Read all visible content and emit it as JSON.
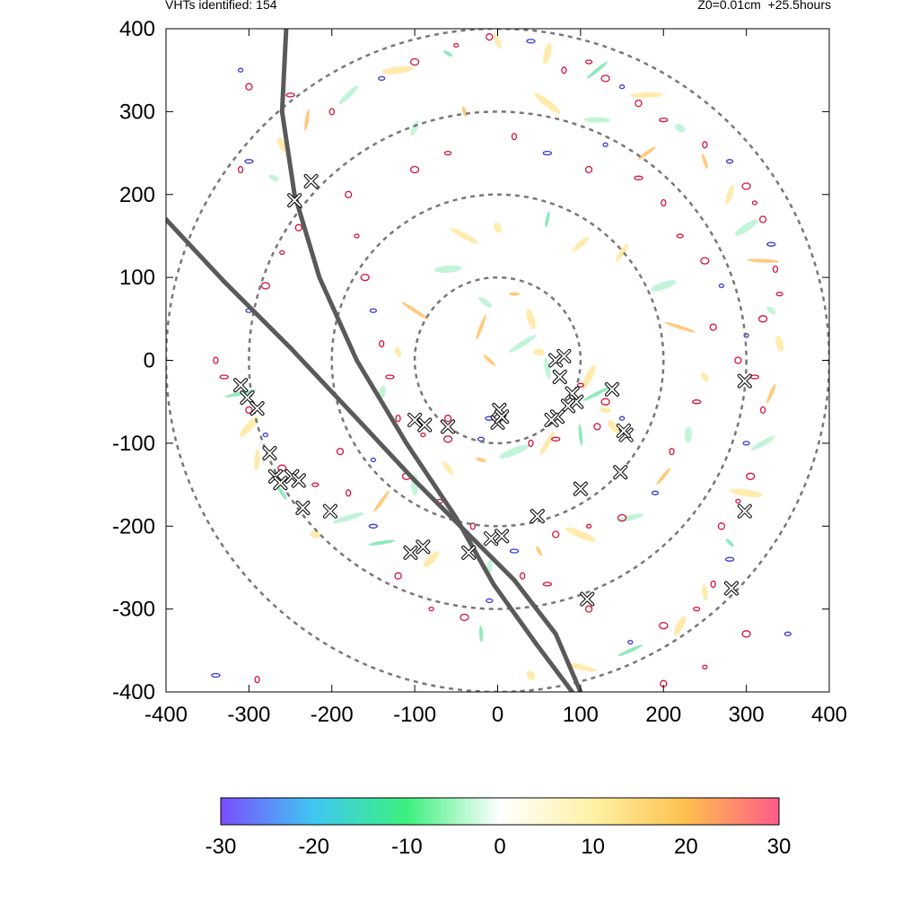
{
  "header": {
    "left_text": "VHTs identified: 154",
    "right_text": "Z0=0.01cm  +25.5hours"
  },
  "chart_data": {
    "type": "scatter",
    "xlim": [
      -400,
      400
    ],
    "ylim": [
      -400,
      400
    ],
    "x_ticks": [
      "-400",
      "-300",
      "-200",
      "-100",
      "0",
      "100",
      "200",
      "300",
      "400"
    ],
    "y_ticks": [
      "400",
      "300",
      "200",
      "100",
      "0",
      "-100",
      "-200",
      "-300",
      "-400"
    ],
    "range_rings": [
      100,
      200,
      300,
      400
    ],
    "colorbar": {
      "range": [
        -30,
        30
      ],
      "ticks": [
        "-30",
        "-20",
        "-10",
        "0",
        "10",
        "20",
        "30"
      ],
      "colors": [
        "#7b4dff",
        "#3fc7f2",
        "#3cf07e",
        "#ffffff",
        "#fff2a6",
        "#ffc04d",
        "#ff5b88"
      ]
    },
    "tracks": [
      {
        "points": [
          [
            -400,
            170
          ],
          [
            -330,
            95
          ],
          [
            -250,
            15
          ],
          [
            -170,
            -70
          ],
          [
            -100,
            -145
          ],
          [
            -30,
            -215
          ],
          [
            20,
            -265
          ],
          [
            70,
            -330
          ],
          [
            100,
            -400
          ]
        ]
      },
      {
        "points": [
          [
            -255,
            400
          ],
          [
            -260,
            300
          ],
          [
            -245,
            200
          ],
          [
            -215,
            100
          ],
          [
            -170,
            0
          ],
          [
            -110,
            -100
          ],
          [
            -50,
            -190
          ],
          [
            -5,
            -270
          ],
          [
            45,
            -340
          ],
          [
            90,
            -400
          ]
        ]
      }
    ],
    "vht_markers": [
      [
        -310,
        -30
      ],
      [
        -302,
        -45
      ],
      [
        -290,
        -58
      ],
      [
        -275,
        -112
      ],
      [
        -268,
        -140
      ],
      [
        -262,
        -148
      ],
      [
        -248,
        -140
      ],
      [
        -240,
        -145
      ],
      [
        -235,
        -178
      ],
      [
        -202,
        -182
      ],
      [
        -245,
        193
      ],
      [
        -225,
        216
      ],
      [
        -100,
        -72
      ],
      [
        -88,
        -78
      ],
      [
        -60,
        -80
      ],
      [
        -105,
        -232
      ],
      [
        -90,
        -225
      ],
      [
        -35,
        -232
      ],
      [
        -8,
        -215
      ],
      [
        5,
        -212
      ],
      [
        48,
        -188
      ],
      [
        100,
        -155
      ],
      [
        108,
        -288
      ],
      [
        148,
        -135
      ],
      [
        155,
        -90
      ],
      [
        152,
        -85
      ],
      [
        138,
        -35
      ],
      [
        70,
        0
      ],
      [
        80,
        5
      ],
      [
        75,
        -20
      ],
      [
        90,
        -40
      ],
      [
        95,
        -50
      ],
      [
        85,
        -55
      ],
      [
        72,
        -68
      ],
      [
        65,
        -72
      ],
      [
        2,
        -60
      ],
      [
        0,
        -75
      ],
      [
        5,
        -68
      ],
      [
        298,
        -25
      ],
      [
        298,
        -182
      ],
      [
        282,
        -275
      ]
    ],
    "shading": [
      [
        20,
        80,
        1
      ],
      [
        -15,
        70,
        -1
      ],
      [
        40,
        50,
        1
      ],
      [
        -20,
        40,
        1
      ],
      [
        30,
        20,
        -1
      ],
      [
        50,
        10,
        1
      ],
      [
        -10,
        0,
        1
      ],
      [
        60,
        -10,
        -1
      ],
      [
        110,
        -20,
        1
      ],
      [
        120,
        -40,
        -1
      ],
      [
        130,
        -60,
        1
      ],
      [
        140,
        -80,
        1
      ],
      [
        100,
        -90,
        -1
      ],
      [
        60,
        -100,
        1
      ],
      [
        20,
        -110,
        -1
      ],
      [
        -20,
        -120,
        1
      ],
      [
        -60,
        -130,
        1
      ],
      [
        -100,
        -150,
        -1
      ],
      [
        -140,
        -170,
        1
      ],
      [
        -180,
        -190,
        -1
      ],
      [
        -220,
        -210,
        1
      ],
      [
        -260,
        -160,
        -1
      ],
      [
        -290,
        -120,
        1
      ],
      [
        -300,
        -80,
        1
      ],
      [
        -310,
        -40,
        -1
      ],
      [
        -270,
        220,
        -1
      ],
      [
        -260,
        260,
        1
      ],
      [
        -230,
        290,
        1
      ],
      [
        -180,
        320,
        -1
      ],
      [
        -120,
        350,
        1
      ],
      [
        -60,
        370,
        -1
      ],
      [
        0,
        385,
        1
      ],
      [
        60,
        370,
        1
      ],
      [
        120,
        350,
        -1
      ],
      [
        180,
        320,
        1
      ],
      [
        220,
        280,
        -1
      ],
      [
        250,
        240,
        1
      ],
      [
        280,
        200,
        1
      ],
      [
        300,
        160,
        -1
      ],
      [
        320,
        120,
        1
      ],
      [
        330,
        60,
        -1
      ],
      [
        340,
        20,
        1
      ],
      [
        330,
        -40,
        1
      ],
      [
        320,
        -100,
        -1
      ],
      [
        300,
        -160,
        1
      ],
      [
        280,
        -220,
        -1
      ],
      [
        250,
        -280,
        1
      ],
      [
        220,
        -320,
        1
      ],
      [
        160,
        -350,
        -1
      ],
      [
        100,
        -370,
        1
      ],
      [
        40,
        -380,
        1
      ],
      [
        -20,
        -330,
        -1
      ],
      [
        150,
        130,
        1
      ],
      [
        200,
        90,
        -1
      ],
      [
        220,
        40,
        1
      ],
      [
        250,
        -20,
        1
      ],
      [
        230,
        -90,
        -1
      ],
      [
        200,
        -140,
        1
      ],
      [
        160,
        -190,
        -1
      ],
      [
        100,
        -210,
        1
      ],
      [
        50,
        -230,
        1
      ],
      [
        -10,
        -250,
        -1
      ],
      [
        -80,
        -240,
        1
      ],
      [
        -140,
        -220,
        -1
      ],
      [
        -40,
        150,
        1
      ],
      [
        0,
        160,
        1
      ],
      [
        60,
        170,
        -1
      ],
      [
        100,
        140,
        1
      ],
      [
        -60,
        110,
        -1
      ],
      [
        -100,
        60,
        1
      ],
      [
        -120,
        10,
        1
      ],
      [
        -140,
        -40,
        -1
      ],
      [
        180,
        250,
        1
      ],
      [
        120,
        290,
        -1
      ],
      [
        60,
        310,
        1
      ],
      [
        -40,
        300,
        1
      ],
      [
        -100,
        280,
        -1
      ]
    ],
    "contours": [
      [
        -310,
        350
      ],
      [
        -300,
        330
      ],
      [
        -250,
        320
      ],
      [
        -200,
        300
      ],
      [
        -140,
        340
      ],
      [
        -100,
        360
      ],
      [
        -50,
        380
      ],
      [
        -10,
        390
      ],
      [
        40,
        385
      ],
      [
        80,
        350
      ],
      [
        110,
        360
      ],
      [
        130,
        340
      ],
      [
        150,
        330
      ],
      [
        170,
        310
      ],
      [
        200,
        290
      ],
      [
        250,
        260
      ],
      [
        280,
        240
      ],
      [
        300,
        210
      ],
      [
        310,
        190
      ],
      [
        320,
        170
      ],
      [
        330,
        140
      ],
      [
        335,
        110
      ],
      [
        340,
        80
      ],
      [
        320,
        50
      ],
      [
        300,
        30
      ],
      [
        290,
        0
      ],
      [
        310,
        -20
      ],
      [
        320,
        -60
      ],
      [
        300,
        -100
      ],
      [
        305,
        -140
      ],
      [
        290,
        -170
      ],
      [
        270,
        -200
      ],
      [
        280,
        -240
      ],
      [
        260,
        -270
      ],
      [
        240,
        -300
      ],
      [
        200,
        -320
      ],
      [
        160,
        -340
      ],
      [
        110,
        -300
      ],
      [
        60,
        -270
      ],
      [
        30,
        -260
      ],
      [
        -10,
        -290
      ],
      [
        -40,
        -310
      ],
      [
        -80,
        -300
      ],
      [
        -120,
        -260
      ],
      [
        -150,
        -200
      ],
      [
        -180,
        -160
      ],
      [
        -220,
        -150
      ],
      [
        -260,
        -130
      ],
      [
        -280,
        -90
      ],
      [
        -300,
        -60
      ],
      [
        -330,
        -20
      ],
      [
        -340,
        0
      ],
      [
        -300,
        60
      ],
      [
        -280,
        90
      ],
      [
        -260,
        130
      ],
      [
        -240,
        160
      ],
      [
        -300,
        240
      ],
      [
        -310,
        230
      ],
      [
        220,
        150
      ],
      [
        250,
        120
      ],
      [
        270,
        90
      ],
      [
        260,
        40
      ],
      [
        240,
        -50
      ],
      [
        210,
        -110
      ],
      [
        190,
        -160
      ],
      [
        150,
        -190
      ],
      [
        110,
        -200
      ],
      [
        70,
        -210
      ],
      [
        20,
        -230
      ],
      [
        -30,
        -200
      ],
      [
        -70,
        -170
      ],
      [
        -110,
        -140
      ],
      [
        -150,
        -120
      ],
      [
        -190,
        -110
      ],
      [
        -130,
        -20
      ],
      [
        -140,
        20
      ],
      [
        -150,
        60
      ],
      [
        -160,
        100
      ],
      [
        -170,
        150
      ],
      [
        -180,
        200
      ],
      [
        60,
        250
      ],
      [
        20,
        270
      ],
      [
        -60,
        250
      ],
      [
        -100,
        230
      ],
      [
        130,
        260
      ],
      [
        110,
        230
      ],
      [
        170,
        220
      ],
      [
        200,
        190
      ],
      [
        350,
        -330
      ],
      [
        300,
        -330
      ],
      [
        250,
        -370
      ],
      [
        200,
        -390
      ],
      [
        -340,
        -380
      ],
      [
        -290,
        -385
      ],
      [
        100,
        -30
      ],
      [
        130,
        -50
      ],
      [
        150,
        -70
      ],
      [
        120,
        -80
      ],
      [
        70,
        -95
      ],
      [
        40,
        -100
      ],
      [
        -20,
        -95
      ],
      [
        -60,
        -95
      ],
      [
        -90,
        -90
      ],
      [
        -60,
        -70
      ],
      [
        -10,
        -70
      ],
      [
        -120,
        -70
      ]
    ]
  }
}
